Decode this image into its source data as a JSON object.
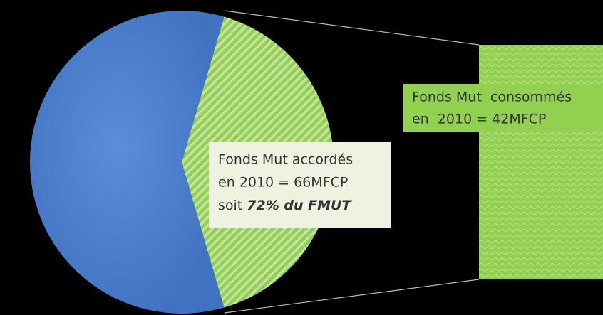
{
  "chart_data": {
    "type": "pie",
    "values": [
      59,
      41
    ],
    "colors": [
      "#4a80d0",
      "#92d050"
    ],
    "annotations": [
      {
        "lines": [
          "Fonds Mut  accordés",
          "en 2010 = 66MFCP"
        ],
        "prefix": "soit ",
        "emphasis": "72% du FMUT"
      },
      {
        "lines": [
          "Fonds Mut  consommés",
          "en  2010 = 42MFCP"
        ]
      }
    ]
  }
}
